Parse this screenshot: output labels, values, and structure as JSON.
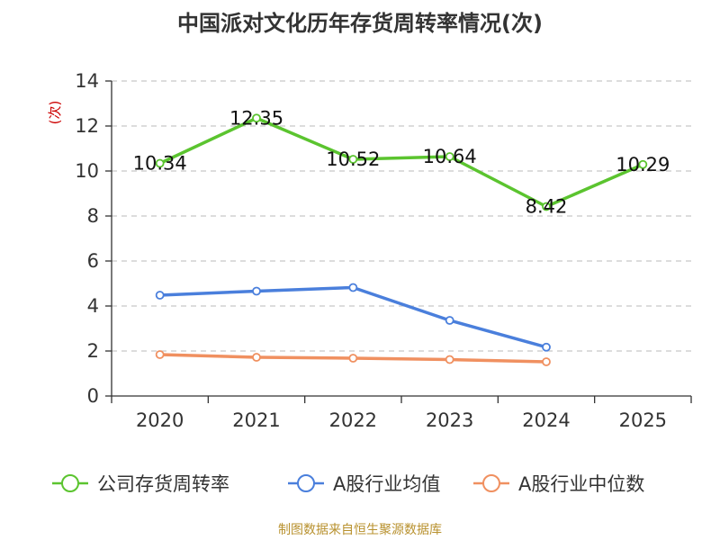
{
  "chart_data": {
    "type": "line",
    "title": "中国派对文化历年存货周转率情况(次)",
    "ylabel": "(次)",
    "xlabel": "",
    "ylim": [
      0,
      14
    ],
    "yticks": [
      0,
      2,
      4,
      6,
      8,
      10,
      12,
      14
    ],
    "categories": [
      "2020",
      "2021",
      "2022",
      "2023",
      "2024",
      "2025"
    ],
    "grid": true,
    "legend_position": "bottom",
    "series": [
      {
        "name": "公司存货周转率",
        "color": "#5bc42f",
        "values": [
          10.34,
          12.35,
          10.52,
          10.64,
          8.42,
          10.29
        ],
        "labels": [
          "10.34",
          "12.35",
          "10.52",
          "10.64",
          "8.42",
          "10.29"
        ]
      },
      {
        "name": "A股行业均值",
        "color": "#4a7fdc",
        "values": [
          4.48,
          4.66,
          4.82,
          3.36,
          2.17,
          null
        ]
      },
      {
        "name": "A股行业中位数",
        "color": "#f09060",
        "values": [
          1.84,
          1.72,
          1.68,
          1.62,
          1.52,
          null
        ]
      }
    ]
  },
  "footer": "制图数据来自恒生聚源数据库"
}
